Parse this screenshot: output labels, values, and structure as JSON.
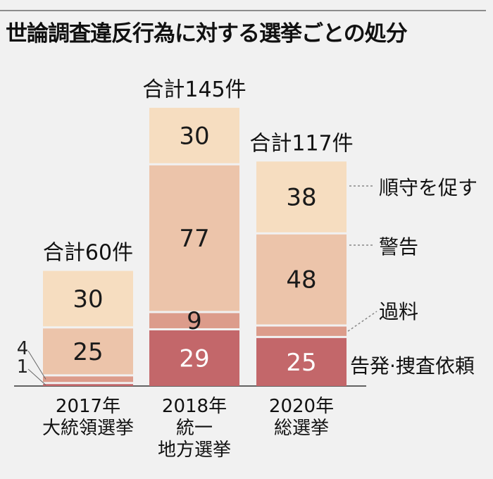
{
  "chart_data": {
    "type": "bar",
    "stacked": true,
    "title": "世論調査違反行為に対する選挙ごとの処分",
    "categories": [
      [
        "2017年",
        "大統領選挙"
      ],
      [
        "2018年",
        "統一",
        "地方選挙"
      ],
      [
        "2020年",
        "総選挙"
      ]
    ],
    "totals": [
      "合計60件",
      "合計145件",
      "合計117件"
    ],
    "series": [
      {
        "name": "告発·捜査依頼",
        "values": [
          1,
          29,
          25
        ],
        "color": "#c3676a",
        "text_color": "#ffffff"
      },
      {
        "name": "過料",
        "values": [
          4,
          9,
          6
        ],
        "color": "#dc9c8b",
        "text_color": "#1a1a1a"
      },
      {
        "name": "警告",
        "values": [
          25,
          77,
          48
        ],
        "color": "#ecc4aa",
        "text_color": "#1a1a1a"
      },
      {
        "name": "順守を促す",
        "values": [
          30,
          30,
          38
        ],
        "color": "#f6ddc0",
        "text_color": "#1a1a1a"
      }
    ]
  }
}
